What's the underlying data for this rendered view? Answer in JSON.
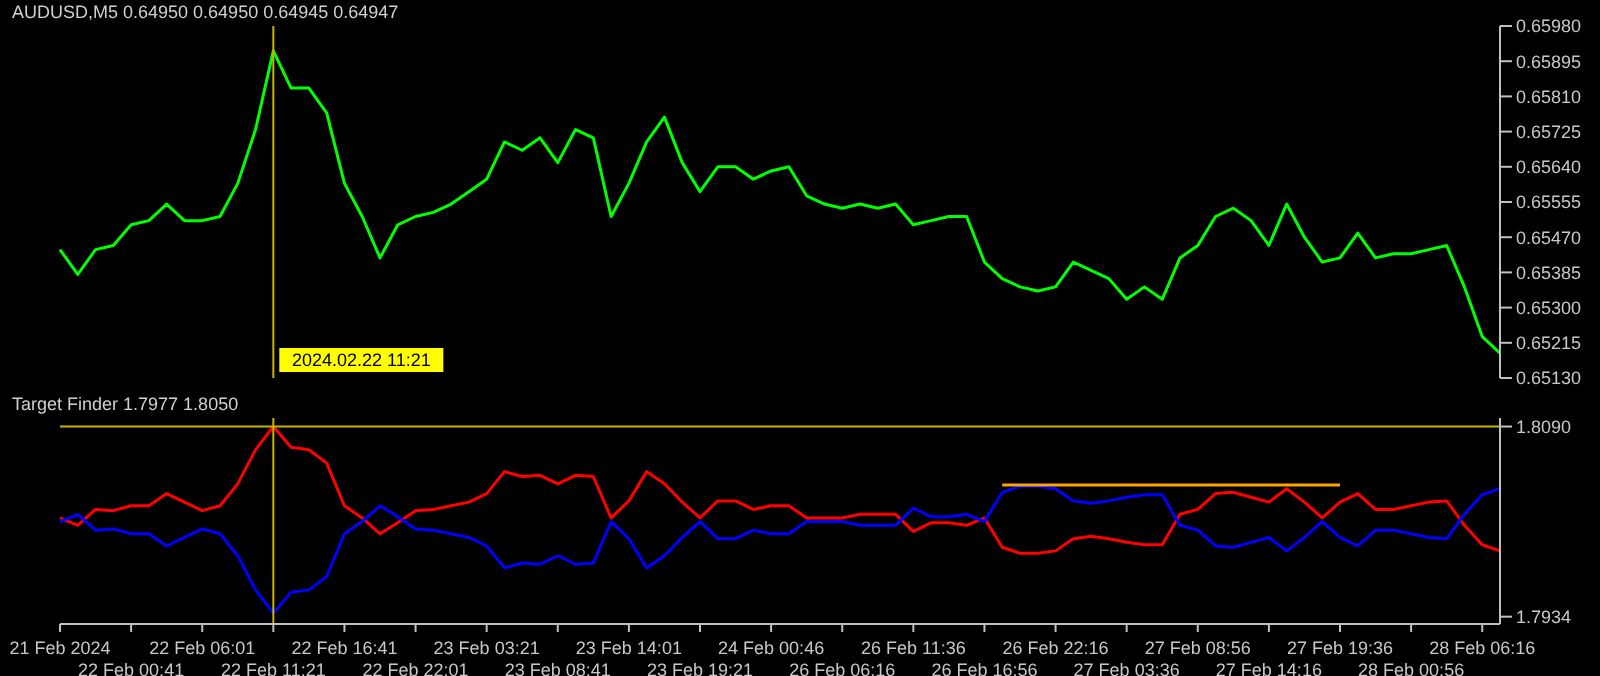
{
  "chart_data": [
    {
      "type": "line",
      "title": "AUDUSD,M5  0.64950 0.64950 0.64945 0.64947",
      "tick_labels": "y",
      "categories": [
        "21 Feb 2024",
        null,
        null,
        null,
        "22 Feb 00:41",
        null,
        null,
        null,
        "22 Feb 06:01",
        null,
        null,
        null,
        "22 Feb 11:21",
        null,
        null,
        null,
        "22 Feb 16:41",
        null,
        null,
        null,
        "22 Feb 22:01",
        null,
        null,
        null,
        "23 Feb 03:21",
        null,
        null,
        null,
        "23 Feb 08:41",
        null,
        null,
        null,
        "23 Feb 14:01",
        null,
        null,
        null,
        "23 Feb 19:21",
        null,
        null,
        null,
        "24 Feb 00:46",
        null,
        null,
        null,
        "26 Feb 06:16",
        null,
        null,
        null,
        "26 Feb 11:36",
        null,
        null,
        null,
        "26 Feb 16:56",
        null,
        null,
        null,
        "26 Feb 22:16",
        null,
        null,
        null,
        "27 Feb 03:36",
        null,
        null,
        null,
        "27 Feb 08:56",
        null,
        null,
        null,
        "27 Feb 14:16",
        null,
        null,
        null,
        "27 Feb 19:36",
        null,
        null,
        null,
        "28 Feb 00:56",
        null,
        null,
        null,
        "28 Feb 06:16",
        null
      ],
      "series": [
        {
          "color": "#00ff00",
          "values": [
            0.6544,
            0.6538,
            0.6544,
            0.6545,
            0.655,
            0.6551,
            0.6555,
            0.6551,
            0.6551,
            0.6552,
            0.656,
            0.6573,
            0.6592,
            0.6583,
            0.6583,
            0.6577,
            0.656,
            0.6552,
            0.6542,
            0.655,
            0.6552,
            0.6553,
            0.6555,
            0.6558,
            0.6561,
            0.657,
            0.6568,
            0.6571,
            0.6565,
            0.6573,
            0.6571,
            0.6552,
            0.656,
            0.657,
            0.6576,
            0.6565,
            0.6558,
            0.6564,
            0.6564,
            0.6561,
            0.6563,
            0.6564,
            0.6557,
            0.6555,
            0.6554,
            0.6555,
            0.6554,
            0.6555,
            0.655,
            0.6551,
            0.6552,
            0.6552,
            0.6541,
            0.6537,
            0.6535,
            0.6534,
            0.6535,
            0.6541,
            0.6539,
            0.6537,
            0.6532,
            0.6535,
            0.6532,
            0.6542,
            0.6545,
            0.6552,
            0.6554,
            0.6551,
            0.6545,
            0.6555,
            0.6547,
            0.6541,
            0.6542,
            0.6548,
            0.6542,
            0.6543,
            0.6543,
            0.6544,
            0.6545,
            0.6535,
            0.6523,
            0.6519
          ]
        }
      ],
      "ylim": [
        0.6513,
        0.6598
      ],
      "yticks": [
        {
          "value": 0.6513,
          "label": "0.65130"
        },
        0.65215,
        {
          "value": 0.653,
          "label": "0.65300"
        },
        0.65385,
        {
          "value": 0.6547,
          "label": "0.65470"
        },
        0.65555,
        {
          "value": 0.6564,
          "label": "0.65640"
        },
        0.65725,
        {
          "value": 0.6581,
          "label": "0.65810"
        },
        0.65895,
        {
          "value": 0.6598,
          "label": "0.65980"
        }
      ],
      "ref_lines": [
        {
          "axis": "x",
          "value": "22 Feb 11:21",
          "label": "2024.02.22 11:21",
          "color": "#c8b400"
        }
      ]
    },
    {
      "type": "line",
      "title": "Target Finder 1.7977 1.8050",
      "categories": [
        "21 Feb 2024",
        null,
        null,
        null,
        "22 Feb 00:41",
        null,
        null,
        null,
        "22 Feb 06:01",
        null,
        null,
        null,
        "22 Feb 11:21",
        null,
        null,
        null,
        "22 Feb 16:41",
        null,
        null,
        null,
        "22 Feb 22:01",
        null,
        null,
        null,
        "23 Feb 03:21",
        null,
        null,
        null,
        "23 Feb 08:41",
        null,
        null,
        null,
        "23 Feb 14:01",
        null,
        null,
        null,
        "23 Feb 19:21",
        null,
        null,
        null,
        "24 Feb 00:46",
        null,
        null,
        null,
        "26 Feb 06:16",
        null,
        null,
        null,
        "26 Feb 11:36",
        null,
        null,
        null,
        "26 Feb 16:56",
        null,
        null,
        null,
        "26 Feb 22:16",
        null,
        null,
        null,
        "27 Feb 03:36",
        null,
        null,
        null,
        "27 Feb 08:56",
        null,
        null,
        null,
        "27 Feb 14:16",
        null,
        null,
        null,
        "27 Feb 19:36",
        null,
        null,
        null,
        "28 Feb 00:56",
        null,
        null,
        null,
        "28 Feb 06:16",
        null
      ],
      "series": [
        {
          "color": "#ff0000",
          "values": [
            1.8015,
            1.8009,
            1.8022,
            1.8021,
            1.8025,
            1.8025,
            1.8035,
            1.8028,
            1.8021,
            1.8025,
            1.8043,
            1.8071,
            1.809,
            1.8073,
            1.8071,
            1.806,
            1.8025,
            1.8015,
            1.8002,
            1.8011,
            1.8021,
            1.8022,
            1.8025,
            1.8028,
            1.8035,
            1.8053,
            1.8049,
            1.805,
            1.8043,
            1.805,
            1.8049,
            1.8015,
            1.8029,
            1.8053,
            1.8043,
            1.8028,
            1.8015,
            1.8029,
            1.8029,
            1.8022,
            1.8025,
            1.8025,
            1.8015,
            1.8015,
            1.8015,
            1.8018,
            1.8018,
            1.8018,
            1.8004,
            1.8011,
            1.8011,
            1.8009,
            1.8015,
            1.7991,
            1.7986,
            1.7986,
            1.7988,
            1.7998,
            1.8,
            1.7998,
            1.7995,
            1.7993,
            1.7993,
            1.8018,
            1.8022,
            1.8035,
            1.8036,
            1.8032,
            1.8028,
            1.8039,
            1.8028,
            1.8015,
            1.8028,
            1.8035,
            1.8022,
            1.8022,
            1.8025,
            1.8028,
            1.8029,
            1.8009,
            1.7993,
            1.7988
          ]
        },
        {
          "color": "#0000ff",
          "values": [
            1.8012,
            1.8018,
            1.8005,
            1.8006,
            1.8002,
            1.8002,
            1.7992,
            1.7999,
            1.8006,
            1.8002,
            1.7984,
            1.7956,
            1.7937,
            1.7954,
            1.7956,
            1.7967,
            1.8002,
            1.8012,
            1.8025,
            1.8016,
            1.8006,
            1.8005,
            1.8002,
            1.7999,
            1.7992,
            1.7974,
            1.7978,
            1.7977,
            1.7984,
            1.7977,
            1.7978,
            1.8012,
            1.7998,
            1.7974,
            1.7984,
            1.7999,
            1.8012,
            1.7998,
            1.7998,
            1.8005,
            1.8002,
            1.8002,
            1.8012,
            1.8012,
            1.8012,
            1.8009,
            1.8009,
            1.8009,
            1.8023,
            1.8016,
            1.8016,
            1.8018,
            1.8012,
            1.8036,
            1.8041,
            1.8041,
            1.8039,
            1.8029,
            1.8027,
            1.8029,
            1.8032,
            1.8034,
            1.8034,
            1.8009,
            1.8005,
            1.7992,
            1.7991,
            1.7995,
            1.7999,
            1.7988,
            1.7999,
            1.8012,
            1.7999,
            1.7992,
            1.8005,
            1.8005,
            1.8002,
            1.7999,
            1.7998,
            1.8018,
            1.8034,
            1.8039
          ]
        },
        {
          "color": "#ffa500",
          "values": [
            null,
            null,
            null,
            null,
            null,
            null,
            null,
            null,
            null,
            null,
            null,
            null,
            null,
            null,
            null,
            null,
            null,
            null,
            null,
            null,
            null,
            null,
            null,
            null,
            null,
            null,
            null,
            null,
            null,
            null,
            null,
            null,
            null,
            null,
            null,
            null,
            null,
            null,
            null,
            null,
            null,
            null,
            null,
            null,
            null,
            null,
            null,
            null,
            null,
            null,
            null,
            null,
            null,
            1.8042,
            1.8042,
            1.8042,
            1.8042,
            1.8042,
            1.8042,
            1.8042,
            1.8042,
            1.8042,
            1.8042,
            1.8042,
            1.8042,
            1.8042,
            1.8042,
            1.8042,
            1.8042,
            1.8042,
            1.8042,
            1.8042,
            1.8042,
            null,
            null,
            null,
            null,
            null,
            null,
            null,
            null,
            null
          ]
        }
      ],
      "ylim": [
        1.7928,
        1.8097
      ],
      "yticks": [
        1.7934,
        {
          "value": 1.809,
          "label": "1.8090"
        }
      ],
      "ref_lines": [
        {
          "axis": "x",
          "value": "22 Feb 11:21",
          "color": "#c8b400"
        },
        {
          "axis": "y",
          "value": 1.809,
          "color": "#c8b400"
        }
      ]
    }
  ]
}
